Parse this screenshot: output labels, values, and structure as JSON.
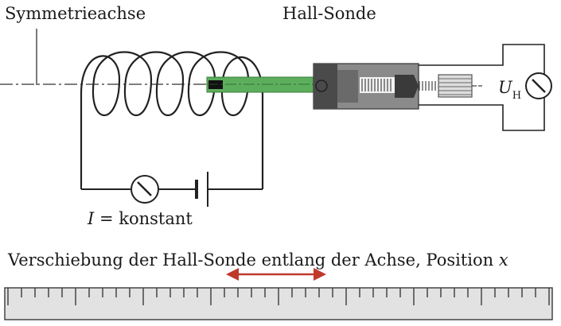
{
  "labels": {
    "symmetry_axis": "Symmetrieachse",
    "hall_probe": "Hall-Sonde",
    "current_symbol": "I",
    "current_text": " = konstant",
    "voltage_symbol": "U",
    "voltage_subscript": "H",
    "caption_text": "Verschiebung der Hall-Sonde entlang der Achse, Position ",
    "caption_var": "x"
  },
  "colors": {
    "probe_rod": "#5cae5c",
    "arrow": "#c0392b",
    "probe_body": "#5a5a5a",
    "ruler_fill": "#e2e2e2"
  },
  "icons": {
    "ammeter": "ammeter-icon",
    "voltmeter": "voltmeter-icon",
    "battery": "battery-icon"
  }
}
